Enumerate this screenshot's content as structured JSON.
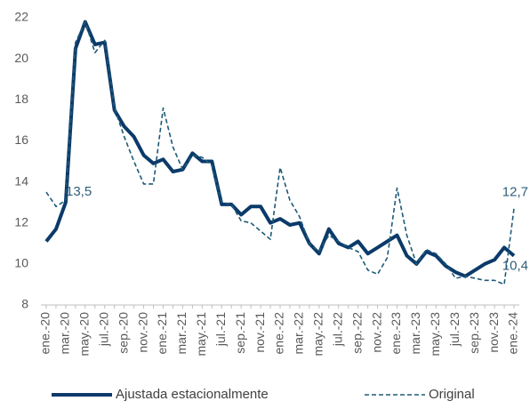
{
  "chart_data": {
    "type": "line",
    "categories": [
      "ene.-20",
      null,
      "mar.-20",
      null,
      "may.-20",
      null,
      "jul.-20",
      null,
      "sep.-20",
      null,
      "nov.-20",
      null,
      "ene.-21",
      null,
      "mar.-21",
      null,
      "may.-21",
      null,
      "jul.-21",
      null,
      "sep.-21",
      null,
      "nov.-21",
      null,
      "ene.-22",
      null,
      "mar.-22",
      null,
      "may.-22",
      null,
      "jul.-22",
      null,
      "sep.-22",
      null,
      "nov.-22",
      null,
      "ene.-23",
      null,
      "mar.-23",
      null,
      "may.-23",
      null,
      "jul.-23",
      null,
      "sep.-23",
      null,
      "nov.-23",
      null,
      "ene.-24"
    ],
    "series": [
      {
        "name": "Ajustada estacionalmente",
        "color": "#0b3a6a",
        "dash": false,
        "values": [
          11.1,
          11.7,
          13.0,
          20.5,
          21.8,
          20.7,
          20.8,
          17.5,
          16.7,
          16.2,
          15.3,
          14.9,
          15.1,
          14.5,
          14.6,
          15.4,
          15.0,
          15.0,
          12.9,
          12.9,
          12.4,
          12.8,
          12.8,
          12.0,
          12.2,
          11.9,
          12.0,
          11.0,
          10.5,
          11.7,
          11.0,
          10.8,
          11.1,
          10.5,
          10.8,
          11.1,
          11.4,
          10.4,
          10.0,
          10.6,
          10.4,
          9.9,
          9.6,
          9.4,
          9.7,
          10.0,
          10.2,
          10.8,
          10.4
        ],
        "value_labels": [
          null,
          null,
          null,
          null,
          null,
          null,
          null,
          null,
          null,
          null,
          null,
          null,
          null,
          null,
          null,
          null,
          null,
          null,
          null,
          null,
          null,
          null,
          null,
          null,
          null,
          null,
          null,
          null,
          null,
          null,
          null,
          null,
          null,
          null,
          null,
          null,
          null,
          null,
          null,
          null,
          null,
          null,
          null,
          null,
          null,
          null,
          null,
          null,
          "10,4"
        ]
      },
      {
        "name": "Original",
        "color": "#1d5a78",
        "dash": true,
        "values": [
          13.5,
          12.8,
          13.1,
          20.8,
          21.8,
          20.3,
          20.9,
          17.6,
          16.2,
          15.0,
          13.9,
          13.9,
          17.6,
          15.7,
          14.6,
          15.3,
          15.2,
          14.8,
          13.0,
          12.9,
          12.1,
          12.0,
          11.6,
          11.2,
          14.7,
          13.1,
          12.3,
          11.0,
          10.6,
          11.4,
          11.1,
          10.8,
          10.6,
          9.7,
          9.5,
          10.3,
          13.7,
          11.4,
          10.0,
          10.7,
          10.5,
          10.0,
          9.3,
          9.4,
          9.3,
          9.2,
          9.2,
          9.0,
          12.7
        ],
        "value_labels": [
          "13,5",
          null,
          null,
          null,
          null,
          null,
          null,
          null,
          null,
          null,
          null,
          null,
          null,
          null,
          null,
          null,
          null,
          null,
          null,
          null,
          null,
          null,
          null,
          null,
          null,
          null,
          null,
          null,
          null,
          null,
          null,
          null,
          null,
          null,
          null,
          null,
          null,
          null,
          null,
          null,
          null,
          null,
          null,
          null,
          null,
          null,
          null,
          null,
          "12,7"
        ]
      }
    ],
    "ylim": [
      8,
      22
    ],
    "yticks": [
      8,
      10,
      12,
      14,
      16,
      18,
      20,
      22
    ],
    "legend": "bottom"
  }
}
